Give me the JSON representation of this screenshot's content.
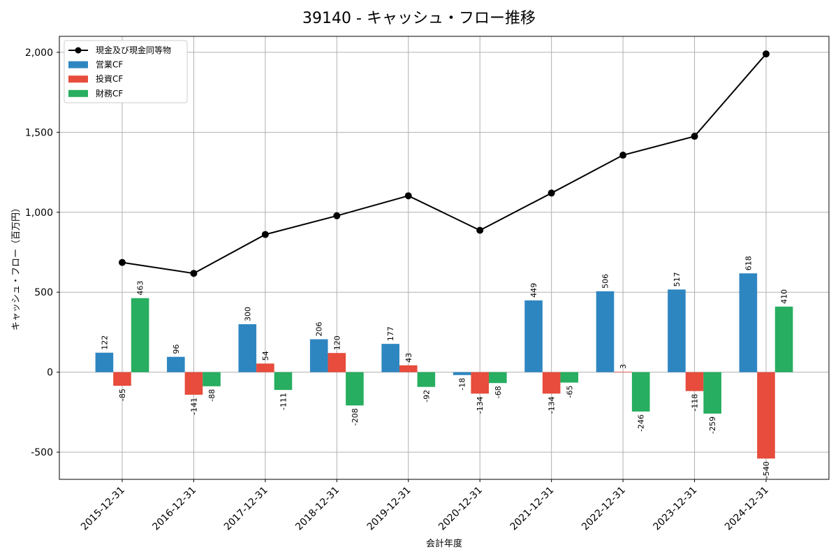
{
  "chart_data": {
    "type": "bar",
    "title": "39140 - キャッシュ・フロー推移",
    "xlabel": "会計年度",
    "ylabel": "キャッシュ・フロー（百万円）",
    "ylim": [
      -670,
      2100
    ],
    "yticks": [
      -500,
      0,
      500,
      1000,
      1500,
      2000
    ],
    "ytick_labels": [
      "-500",
      "0",
      "500",
      "1,000",
      "1,500",
      "2,000"
    ],
    "grid": true,
    "legend_position": "top-left",
    "categories": [
      "2015-12-31",
      "2016-12-31",
      "2017-12-31",
      "2018-12-31",
      "2019-12-31",
      "2020-12-31",
      "2021-12-31",
      "2022-12-31",
      "2023-12-31",
      "2024-12-31"
    ],
    "series": [
      {
        "name": "営業CF",
        "kind": "bar",
        "color": "#2e86c1",
        "values": [
          122,
          96,
          300,
          206,
          177,
          -18,
          449,
          506,
          517,
          618
        ]
      },
      {
        "name": "投資CF",
        "kind": "bar",
        "color": "#e74c3c",
        "values": [
          -85,
          -141,
          54,
          120,
          43,
          -134,
          -134,
          3,
          -118,
          -540
        ]
      },
      {
        "name": "財務CF",
        "kind": "bar",
        "color": "#27ae60",
        "values": [
          463,
          -88,
          -111,
          -208,
          -92,
          -68,
          -65,
          -246,
          -259,
          410
        ]
      },
      {
        "name": "現金及び現金同等物",
        "kind": "line",
        "color": "#000000",
        "values": [
          686,
          618,
          861,
          978,
          1103,
          887,
          1120,
          1357,
          1475,
          1990
        ]
      }
    ]
  }
}
